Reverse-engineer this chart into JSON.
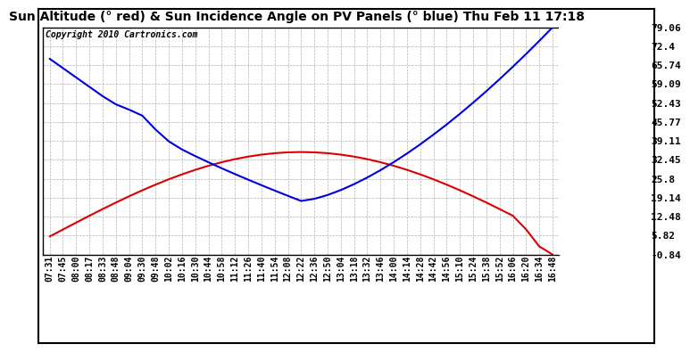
{
  "title": "Sun Altitude (° red) & Sun Incidence Angle on PV Panels (° blue) Thu Feb 11 17:18",
  "copyright": "Copyright 2010 Cartronics.com",
  "yticks": [
    79.06,
    72.4,
    65.74,
    59.09,
    52.43,
    45.77,
    39.11,
    32.45,
    25.8,
    19.14,
    12.48,
    5.82,
    -0.84
  ],
  "ymin": -0.84,
  "ymax": 79.06,
  "background_color": "#ffffff",
  "plot_bg_color": "#ffffff",
  "grid_color": "#b0b0b0",
  "line_blue_color": "#0000dd",
  "line_red_color": "#dd0000",
  "x_labels": [
    "07:31",
    "07:45",
    "08:00",
    "08:17",
    "08:33",
    "08:48",
    "09:04",
    "09:30",
    "09:48",
    "10:02",
    "10:16",
    "10:30",
    "10:44",
    "10:58",
    "11:12",
    "11:26",
    "11:40",
    "11:54",
    "12:08",
    "12:22",
    "12:36",
    "12:50",
    "13:04",
    "13:18",
    "13:32",
    "13:46",
    "14:00",
    "14:14",
    "14:28",
    "14:42",
    "14:56",
    "15:10",
    "15:24",
    "15:38",
    "15:52",
    "16:06",
    "16:20",
    "16:34",
    "16:48"
  ],
  "title_fontsize": 10,
  "copyright_fontsize": 7,
  "tick_fontsize": 7,
  "ytick_fontsize": 8
}
